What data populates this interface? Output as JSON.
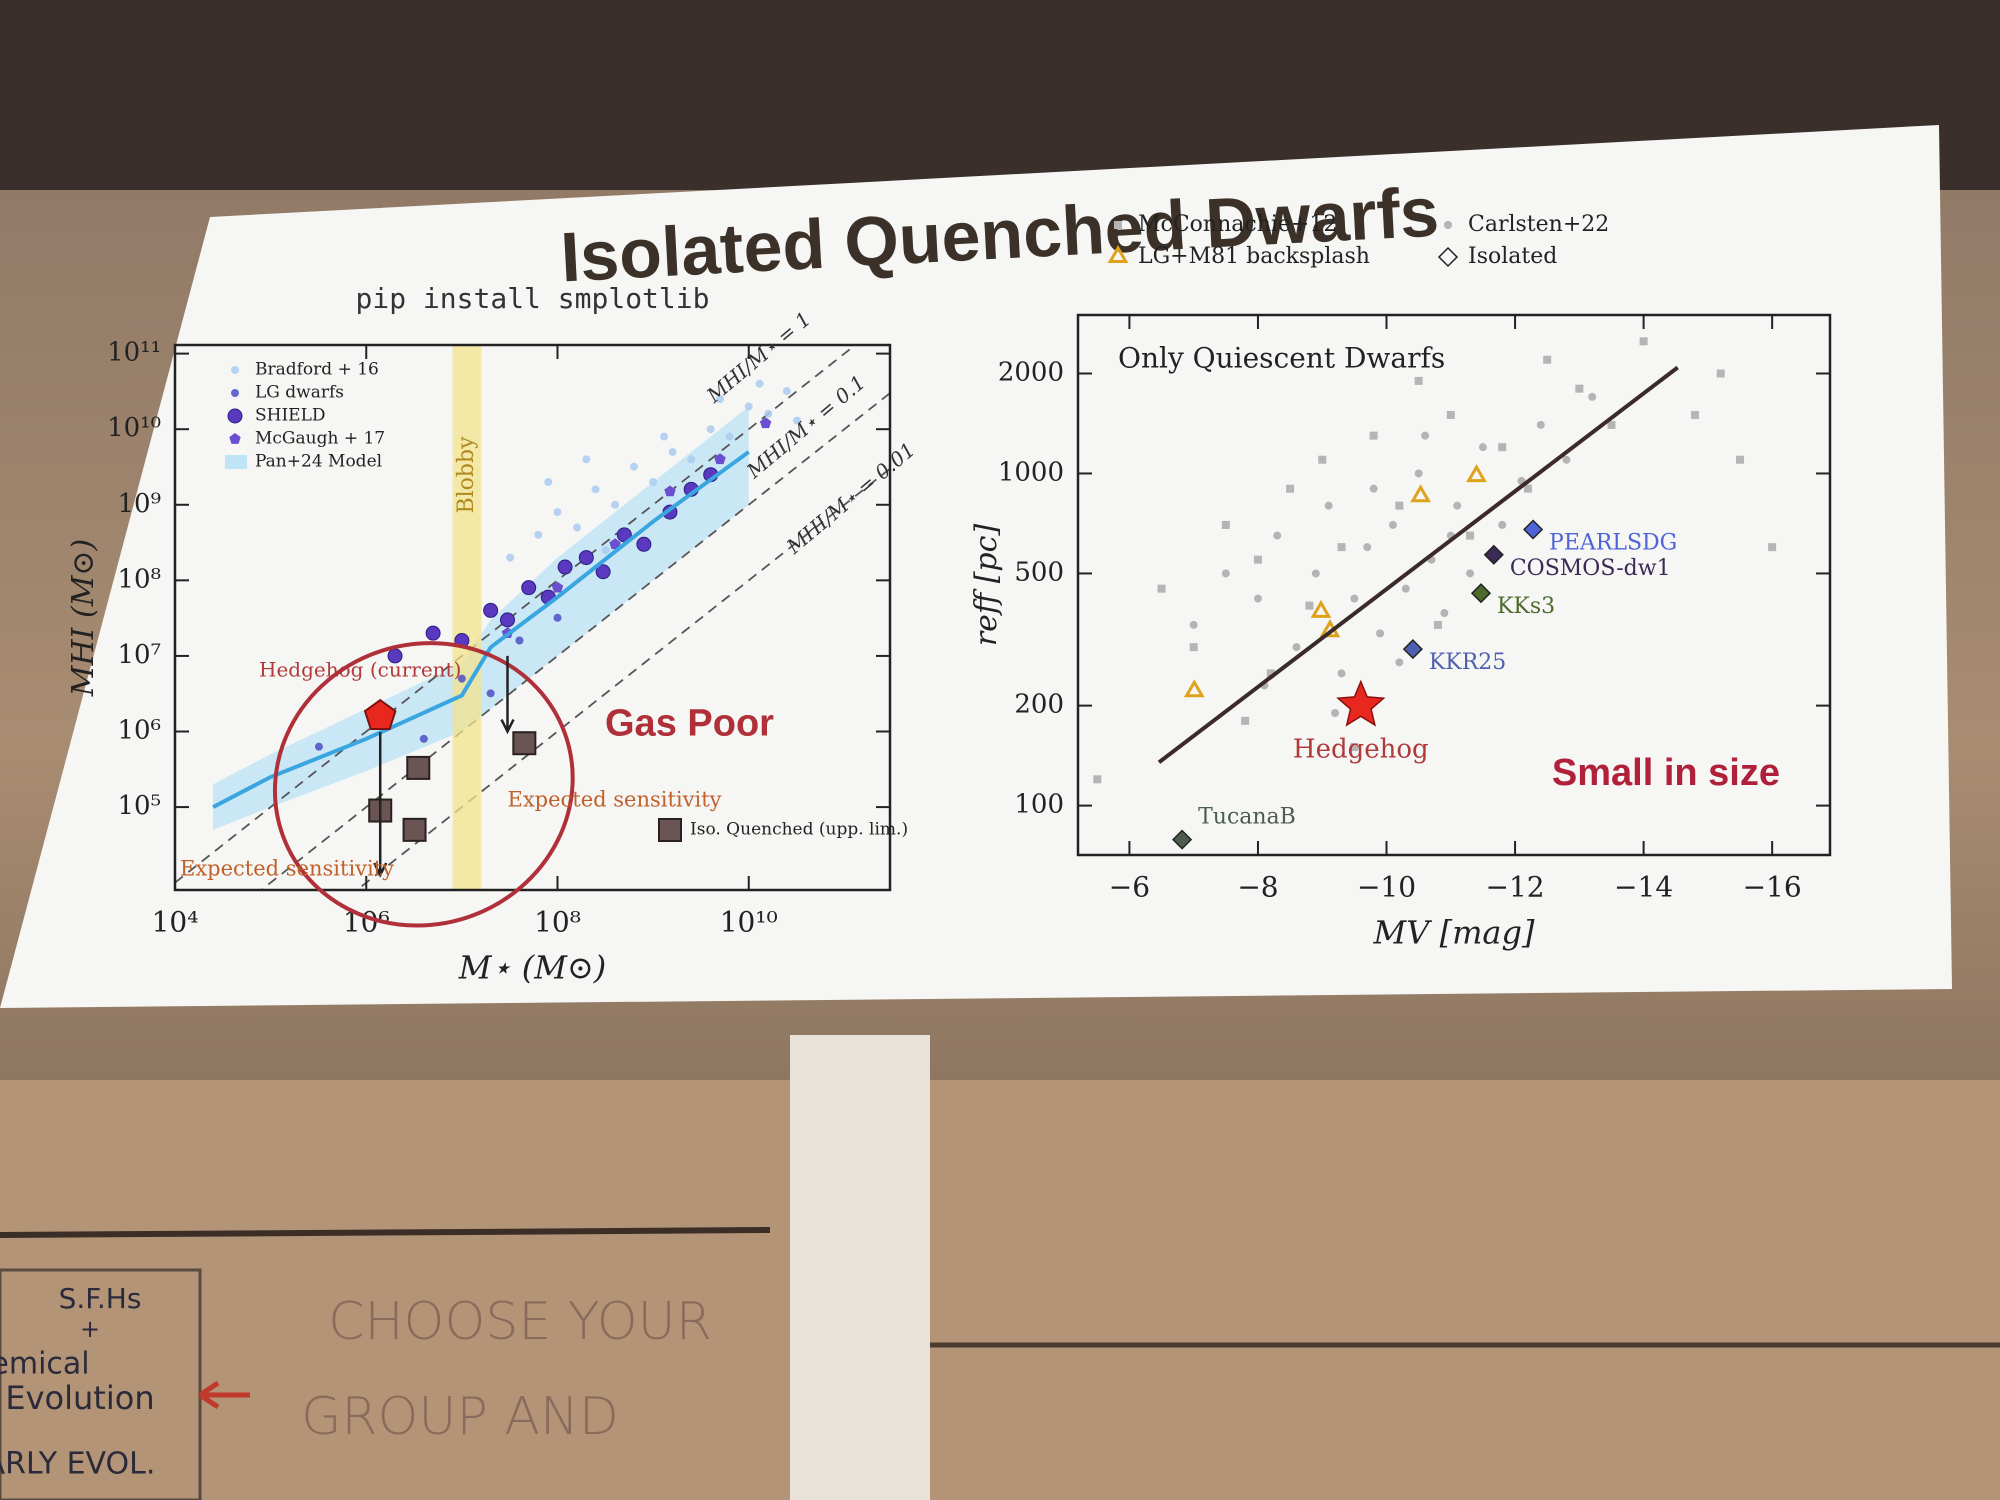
{
  "slide": {
    "title": "Isolated Quenched Dwarfs"
  },
  "chart_data": [
    {
      "type": "scatter",
      "subtitle": "pip install smplotlib",
      "xlabel": "M⋆ (M⊙)",
      "ylabel": "MHI (M⊙)",
      "xscale": "log",
      "yscale": "log",
      "xlim": [
        10000,
        300000000000.0
      ],
      "ylim": [
        8000,
        130000000000.0
      ],
      "xticks": [
        {
          "value": 10000,
          "label": "10⁴"
        },
        {
          "value": 1000000,
          "label": "10⁶"
        },
        {
          "value": 100000000,
          "label": "10⁸"
        },
        {
          "value": 10000000000,
          "label": "10¹⁰"
        }
      ],
      "yticks": [
        {
          "value": 100000,
          "label": "10⁵"
        },
        {
          "value": 1000000,
          "label": "10⁶"
        },
        {
          "value": 10000000,
          "label": "10⁷"
        },
        {
          "value": 100000000,
          "label": "10⁸"
        },
        {
          "value": 1000000000,
          "label": "10⁹"
        },
        {
          "value": 10000000000,
          "label": "10¹⁰"
        },
        {
          "value": 100000000000,
          "label": "10¹¹"
        }
      ],
      "series": [
        {
          "name": "Bradford + 16",
          "kind": "scatter",
          "marker": "circle",
          "color": "#a9cdf0",
          "x": [
            32000000.0,
            63000000.0,
            100000000.0,
            160000000.0,
            250000000.0,
            400000000.0,
            630000000.0,
            1000000000.0,
            1600000000.0,
            2500000000.0,
            4000000000.0,
            6300000000.0,
            10000000000.0,
            16000000000.0,
            25000000000.0,
            320000000.0,
            1300000000.0,
            5000000000.0,
            13000000000.0,
            80000000.0,
            200000000.0,
            32000000000.0
          ],
          "values": [
            200000000.0,
            400000000.0,
            800000000.0,
            500000000.0,
            1600000000.0,
            1000000000.0,
            3200000000.0,
            2000000000.0,
            5000000000.0,
            4000000000.0,
            10000000000.0,
            8000000000.0,
            20000000000.0,
            16000000000.0,
            32000000000.0,
            250000000.0,
            8000000000.0,
            25000000000.0,
            40000000000.0,
            2000000000.0,
            4000000000.0,
            13000000000.0
          ]
        },
        {
          "name": "LG dwarfs",
          "kind": "scatter",
          "marker": "circle",
          "color": "#4b4fc4",
          "x": [
            320000.0,
            1600000.0,
            4000000.0,
            10000000.0,
            20000000.0,
            40000000.0,
            100000000.0
          ],
          "values": [
            630000.0,
            1300000.0,
            800000.0,
            5000000.0,
            3200000.0,
            16000000.0,
            32000000.0
          ]
        },
        {
          "name": "SHIELD",
          "kind": "scatter",
          "marker": "circle-big",
          "color": "#5a38c0",
          "x": [
            2000000.0,
            5000000.0,
            10000000.0,
            20000000.0,
            30000000.0,
            50000000.0,
            80000000.0,
            120000000.0,
            200000000.0,
            300000000.0,
            500000000.0,
            800000000.0,
            1500000000.0,
            2500000000.0,
            4000000000.0
          ],
          "values": [
            10000000.0,
            20000000.0,
            16000000.0,
            40000000.0,
            30000000.0,
            80000000.0,
            60000000.0,
            150000000.0,
            200000000.0,
            130000000.0,
            400000000.0,
            300000000.0,
            800000000.0,
            1600000000.0,
            2500000000.0
          ]
        },
        {
          "name": "McGaugh + 17",
          "kind": "scatter",
          "marker": "pentagon",
          "color": "#6b4fd0",
          "x": [
            30000000.0,
            100000000.0,
            400000000.0,
            1500000000.0,
            5000000000.0,
            15000000000.0
          ],
          "values": [
            20000000.0,
            80000000.0,
            300000000.0,
            1500000000.0,
            4000000000.0,
            12000000000.0
          ]
        },
        {
          "name": "Pan+24 Model",
          "kind": "model",
          "color": "#3aa6e0",
          "fill": "#bfe4f5",
          "x": [
            25000.0,
            100000.0,
            1000000.0,
            10000000.0,
            20000000.0,
            100000000.0,
            1000000000.0,
            10000000000.0
          ],
          "values": [
            100000.0,
            250000.0,
            800000.0,
            3000000.0,
            13000000.0,
            60000000.0,
            600000000.0,
            5000000000.0
          ],
          "lower": [
            50000.0,
            100000.0,
            300000.0,
            1000000.0,
            2000000.0,
            10000000.0,
            100000000.0,
            1000000000.0
          ],
          "upper": [
            200000.0,
            500000.0,
            2000000.0,
            8000000.0,
            30000000.0,
            200000000.0,
            2000000000.0,
            20000000000.0
          ]
        },
        {
          "name": "Iso. Quenched (upp. lim.)",
          "kind": "scatter",
          "marker": "square-big",
          "color": "#6a5454",
          "x": [
            1400000.0,
            3500000.0,
            3200000.0,
            45000000.0
          ],
          "values": [
            90000.0,
            330000.0,
            50000.0,
            700000.0
          ]
        }
      ],
      "ratios": [
        {
          "value": 1,
          "label": "MHI/M⋆ = 1"
        },
        {
          "value": 0.1,
          "label": "MHI/M⋆ = 0.1"
        },
        {
          "value": 0.01,
          "label": "MHI/M⋆ = 0.01"
        }
      ],
      "bands": [
        {
          "label": "Blobby",
          "range": [
            8000000.0,
            16000000.0
          ],
          "color": "#f2e38c"
        }
      ],
      "highlights": [
        {
          "label": "Hedgehog (current)",
          "x": 1400000.0,
          "y": 1600000.0,
          "marker": "pentagon-big",
          "color": "#e8281e"
        }
      ],
      "annotations": [
        "Gas Poor",
        "Expected sensitivity",
        "Expected sensitivity"
      ]
    },
    {
      "type": "scatter",
      "xlabel": "MV [mag]",
      "ylabel": "reff [pc]",
      "xscale": "linear",
      "yscale": "log",
      "xlim": [
        -5.2,
        -16.9
      ],
      "ylim": [
        71,
        3000
      ],
      "xticks": [
        {
          "value": -6,
          "label": "−6"
        },
        {
          "value": -8,
          "label": "−8"
        },
        {
          "value": -10,
          "label": "−10"
        },
        {
          "value": -12,
          "label": "−12"
        },
        {
          "value": -14,
          "label": "−14"
        },
        {
          "value": -16,
          "label": "−16"
        }
      ],
      "yticks": [
        100,
        200,
        500,
        1000,
        2000
      ],
      "series": [
        {
          "name": "McConnachie+12",
          "kind": "scatter",
          "marker": "square",
          "color": "#b5b5b5",
          "x": [
            -5.5,
            -6.5,
            -7,
            -7.5,
            -8,
            -8.2,
            -8.5,
            -9,
            -9.3,
            -9.8,
            -10.2,
            -10.5,
            -11,
            -11.3,
            -11.8,
            -12.5,
            -13,
            -14,
            -14.8,
            -15.5,
            -16,
            -15.2,
            -10.8,
            -12.2,
            -7.8,
            -9.5,
            -8.8,
            -13.5
          ],
          "values": [
            120,
            450,
            300,
            700,
            550,
            250,
            900,
            1100,
            600,
            1300,
            800,
            1900,
            1500,
            650,
            1200,
            2200,
            1800,
            2500,
            1500,
            1100,
            600,
            2000,
            350,
            900,
            180,
            150,
            400,
            1400
          ]
        },
        {
          "name": "Carlsten+22",
          "kind": "scatter",
          "marker": "circle",
          "color": "#a8a8a8",
          "x": [
            -7,
            -7.5,
            -8,
            -8.3,
            -8.6,
            -8.9,
            -9.1,
            -9.3,
            -9.5,
            -9.7,
            -9.9,
            -10.1,
            -10.3,
            -10.5,
            -10.7,
            -10.9,
            -11.1,
            -11.3,
            -11.5,
            -11.8,
            -12.1,
            -12.4,
            -12.8,
            -13.2,
            -9.2,
            -8.1,
            -10.2,
            -11,
            -9.8,
            -10.6
          ],
          "values": [
            350,
            500,
            420,
            650,
            300,
            500,
            800,
            250,
            420,
            600,
            330,
            700,
            450,
            1000,
            550,
            380,
            800,
            500,
            1200,
            700,
            950,
            1400,
            1100,
            1700,
            190,
            230,
            270,
            650,
            900,
            1300
          ]
        },
        {
          "name": "LG+M81 backsplash",
          "kind": "scatter",
          "marker": "triangle",
          "color": "#e0a21a",
          "x": [
            -7.01,
            -8.98,
            -9.12,
            -10.53,
            -11.4
          ],
          "values": [
            221,
            383,
            335,
            854,
            982
          ]
        },
        {
          "name": "Isolated",
          "kind": "scatter",
          "marker": "diamond",
          "color": "#222222",
          "x": [
            -12.28,
            -11.67,
            -11.47,
            -10.41,
            -6.82
          ],
          "values": [
            678,
            569,
            436,
            296,
            79
          ],
          "colors": [
            "#4f63d8",
            "#3b2a55",
            "#4c6b2a",
            "#4f5fb0",
            "#4d5d4d"
          ],
          "point_labels": [
            "PEARLSDG",
            "COSMOS-dw1",
            "KKs3",
            "KKR25",
            "TucanaB"
          ]
        }
      ],
      "fit_line": {
        "x": [
          -6.46,
          -14.53
        ],
        "values": [
          135,
          2085
        ],
        "color": "#3a2a2a"
      },
      "highlights": [
        {
          "label": "Hedgehog",
          "x": -9.6,
          "y": 200,
          "marker": "star",
          "color": "#e8281e"
        }
      ],
      "annotations": [
        "Only Quiescent Dwarfs",
        "Small in size"
      ]
    }
  ],
  "whiteboard": {
    "lines": [
      "S.F.Hs",
      "+",
      "emical",
      "Evolution",
      "ARLY EVOL.",
      "CHOOSE YOUR",
      "GROUP AND"
    ]
  }
}
